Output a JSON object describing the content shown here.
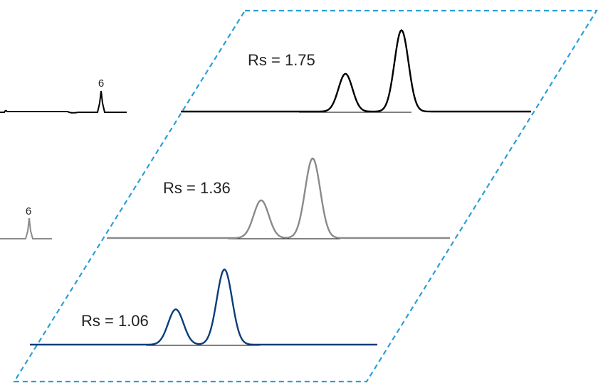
{
  "chart_data": {
    "type": "line",
    "title": "",
    "xlabel": "",
    "ylabel": "",
    "colors": {
      "frame": "#2a9fd6",
      "baseline": "#000000"
    },
    "series": [
      {
        "label": "Rs = 1.75",
        "color": "#000000",
        "resolution": 1.75,
        "peaks": [
          {
            "position": 0.47,
            "height": 0.45,
            "width": 0.02
          },
          {
            "position": 0.63,
            "height": 0.97,
            "width": 0.02
          }
        ]
      },
      {
        "label": "Rs = 1.36",
        "color": "#8a8a8a",
        "resolution": 1.36,
        "peaks": [
          {
            "position": 0.45,
            "height": 0.45,
            "width": 0.022
          },
          {
            "position": 0.6,
            "height": 0.95,
            "width": 0.022
          }
        ]
      },
      {
        "label": "Rs = 1.06",
        "color": "#0b3d7a",
        "resolution": 1.06,
        "peaks": [
          {
            "position": 0.42,
            "height": 0.46,
            "width": 0.022
          },
          {
            "position": 0.56,
            "height": 0.98,
            "width": 0.022
          }
        ]
      }
    ],
    "side_traces": [
      {
        "color": "#000000",
        "peak_label": "6"
      },
      {
        "color": "#8a8a8a",
        "peak_label": "6"
      }
    ]
  }
}
